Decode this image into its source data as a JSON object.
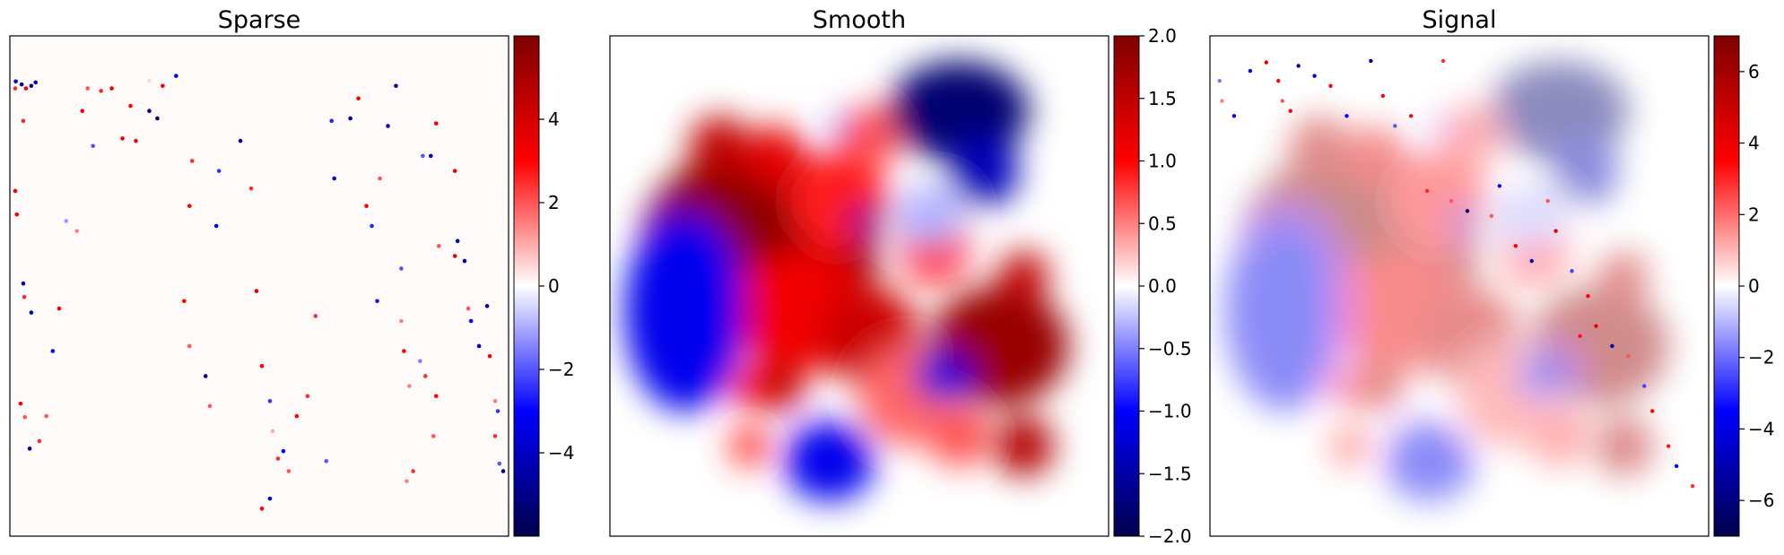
{
  "colormap": {
    "name": "seismic",
    "stops": [
      [
        0.0,
        "#00004c"
      ],
      [
        0.25,
        "#0000ff"
      ],
      [
        0.5,
        "#ffffff"
      ],
      [
        0.75,
        "#ff0000"
      ],
      [
        1.0,
        "#7f0000"
      ]
    ]
  },
  "chart_data": [
    {
      "type": "heatmap",
      "title": "Sparse",
      "value_range": [
        -6,
        6
      ],
      "colorbar_ticks": [
        {
          "value": 4,
          "label": "4"
        },
        {
          "value": 2,
          "label": "2"
        },
        {
          "value": 0,
          "label": "0"
        },
        {
          "value": -2,
          "label": "−2"
        },
        {
          "value": -4,
          "label": "−4"
        }
      ],
      "points": [
        [
          0.081,
          0.091,
          -3.5
        ],
        [
          0.092,
          0.097,
          -4.6
        ],
        [
          0.11,
          0.1,
          -5
        ],
        [
          0.118,
          0.093,
          -4
        ],
        [
          0.08,
          0.105,
          2.5
        ],
        [
          0.1,
          0.105,
          3
        ],
        [
          0.095,
          0.17,
          2.6
        ],
        [
          0.08,
          0.31,
          3.2
        ],
        [
          0.083,
          0.357,
          3
        ],
        [
          0.095,
          0.495,
          -4.6
        ],
        [
          0.097,
          0.522,
          2.5
        ],
        [
          0.11,
          0.553,
          -3.8
        ],
        [
          0.09,
          0.735,
          3
        ],
        [
          0.098,
          0.762,
          2
        ],
        [
          0.107,
          0.825,
          -5
        ],
        [
          0.125,
          0.81,
          2.5
        ],
        [
          0.138,
          0.76,
          2
        ],
        [
          0.15,
          0.63,
          -3
        ],
        [
          0.162,
          0.545,
          3.5
        ],
        [
          0.175,
          0.37,
          -1.2
        ],
        [
          0.195,
          0.39,
          1.5
        ],
        [
          0.205,
          0.15,
          3.2
        ],
        [
          0.215,
          0.105,
          2
        ],
        [
          0.225,
          0.22,
          -2
        ],
        [
          0.24,
          0.11,
          2.6
        ],
        [
          0.26,
          0.105,
          3
        ],
        [
          0.28,
          0.205,
          3.6
        ],
        [
          0.295,
          0.14,
          3
        ],
        [
          0.305,
          0.21,
          3
        ],
        [
          0.33,
          0.15,
          -5
        ],
        [
          0.345,
          0.165,
          -5.4
        ],
        [
          0.33,
          0.09,
          0.5
        ],
        [
          0.355,
          0.1,
          3
        ],
        [
          0.38,
          0.08,
          -3.4
        ],
        [
          0.41,
          0.25,
          2.5
        ],
        [
          0.405,
          0.34,
          3
        ],
        [
          0.395,
          0.53,
          3
        ],
        [
          0.405,
          0.62,
          2
        ],
        [
          0.435,
          0.68,
          -5
        ],
        [
          0.443,
          0.74,
          2
        ],
        [
          0.455,
          0.38,
          -3
        ],
        [
          0.46,
          0.27,
          -2.4
        ],
        [
          0.5,
          0.21,
          -4.5
        ],
        [
          0.52,
          0.305,
          2.5
        ],
        [
          0.53,
          0.51,
          3.5
        ],
        [
          0.54,
          0.66,
          3
        ],
        [
          0.555,
          0.73,
          -2.4
        ],
        [
          0.56,
          0.79,
          1
        ],
        [
          0.57,
          0.845,
          2.5
        ],
        [
          0.555,
          0.925,
          -3.5
        ],
        [
          0.54,
          0.945,
          3
        ],
        [
          0.58,
          0.83,
          -3
        ],
        [
          0.59,
          0.87,
          2
        ],
        [
          0.605,
          0.76,
          3
        ],
        [
          0.625,
          0.72,
          2.5
        ],
        [
          0.64,
          0.56,
          2.5
        ],
        [
          0.66,
          0.85,
          -2
        ],
        [
          0.67,
          0.17,
          -2.6
        ],
        [
          0.675,
          0.285,
          -4
        ],
        [
          0.705,
          0.165,
          -4.3
        ],
        [
          0.72,
          0.125,
          3.2
        ],
        [
          0.735,
          0.34,
          3
        ],
        [
          0.745,
          0.38,
          -2.6
        ],
        [
          0.755,
          0.53,
          -2.8
        ],
        [
          0.76,
          0.285,
          2
        ],
        [
          0.775,
          0.18,
          -4
        ],
        [
          0.79,
          0.1,
          -4.6
        ],
        [
          0.8,
          0.465,
          -2
        ],
        [
          0.8,
          0.57,
          1.5
        ],
        [
          0.805,
          0.63,
          3
        ],
        [
          0.81,
          0.89,
          1.5
        ],
        [
          0.822,
          0.87,
          2.5
        ],
        [
          0.835,
          0.65,
          -1.5
        ],
        [
          0.845,
          0.68,
          2.5
        ],
        [
          0.86,
          0.8,
          2
        ],
        [
          0.865,
          0.72,
          3
        ],
        [
          0.815,
          0.7,
          1.5
        ],
        [
          0.84,
          0.24,
          -2
        ],
        [
          0.855,
          0.24,
          -4.5
        ],
        [
          0.865,
          0.175,
          3.5
        ],
        [
          0.87,
          0.42,
          2
        ],
        [
          0.9,
          0.27,
          3.5
        ],
        [
          0.905,
          0.41,
          -4
        ],
        [
          0.9,
          0.44,
          3.5
        ],
        [
          0.918,
          0.45,
          -4.6
        ],
        [
          0.925,
          0.545,
          2
        ],
        [
          0.93,
          0.57,
          -3
        ],
        [
          0.945,
          0.62,
          -4
        ],
        [
          0.96,
          0.54,
          -4.3
        ],
        [
          0.965,
          0.64,
          3
        ],
        [
          0.975,
          0.73,
          1.5
        ],
        [
          0.98,
          0.75,
          -2.4
        ],
        [
          0.975,
          0.8,
          2.5
        ],
        [
          0.983,
          0.855,
          -2
        ],
        [
          0.99,
          0.87,
          -5
        ],
        [
          1.0,
          0.885,
          -3.5
        ],
        [
          1.012,
          0.09,
          -1.6
        ],
        [
          1.015,
          0.13,
          1.5
        ],
        [
          1.03,
          0.16,
          -3
        ],
        [
          1.05,
          0.07,
          -3.4
        ],
        [
          1.07,
          0.053,
          3.5
        ],
        [
          1.085,
          0.09,
          3
        ],
        [
          1.09,
          0.13,
          2
        ],
        [
          1.1,
          0.15,
          3.5
        ],
        [
          1.11,
          0.06,
          -5
        ],
        [
          1.13,
          0.08,
          -3.5
        ],
        [
          1.15,
          0.1,
          3.2
        ],
        [
          1.17,
          0.16,
          -3
        ],
        [
          1.2,
          0.05,
          -5
        ],
        [
          1.215,
          0.12,
          3
        ],
        [
          1.23,
          0.18,
          -2
        ],
        [
          1.25,
          0.16,
          3
        ],
        [
          1.27,
          0.31,
          2.5
        ],
        [
          1.29,
          0.05,
          2.5
        ],
        [
          1.3,
          0.33,
          2
        ],
        [
          1.32,
          0.35,
          -5.4
        ],
        [
          1.35,
          0.36,
          2
        ],
        [
          1.36,
          0.3,
          -3
        ],
        [
          1.38,
          0.42,
          3.2
        ],
        [
          1.4,
          0.45,
          -4.2
        ],
        [
          1.42,
          0.33,
          2
        ],
        [
          1.43,
          0.39,
          3.6
        ],
        [
          1.45,
          0.47,
          -2.2
        ],
        [
          1.46,
          0.6,
          2.8
        ],
        [
          1.47,
          0.52,
          3
        ],
        [
          1.48,
          0.58,
          3.6
        ],
        [
          1.5,
          0.62,
          -4.5
        ],
        [
          1.52,
          0.64,
          2
        ],
        [
          1.54,
          0.7,
          -2.2
        ],
        [
          1.55,
          0.75,
          3.2
        ],
        [
          1.57,
          0.82,
          2.8
        ],
        [
          1.58,
          0.86,
          -3
        ],
        [
          1.6,
          0.9,
          2.5
        ]
      ]
    },
    {
      "type": "heatmap",
      "title": "Smooth",
      "value_range": [
        -2,
        2
      ],
      "colorbar_ticks": [
        {
          "value": 2.0,
          "label": "2.0"
        },
        {
          "value": 1.5,
          "label": "1.5"
        },
        {
          "value": 1.0,
          "label": "1.0"
        },
        {
          "value": 0.5,
          "label": "0.5"
        },
        {
          "value": 0.0,
          "label": "0.0"
        },
        {
          "value": -0.5,
          "label": "−0.5"
        },
        {
          "value": -1.0,
          "label": "−1.0"
        },
        {
          "value": -1.5,
          "label": "−1.5"
        },
        {
          "value": -2.0,
          "label": "−2.0"
        }
      ]
    },
    {
      "type": "heatmap",
      "title": "Signal",
      "value_range": [
        -7,
        7
      ],
      "colorbar_ticks": [
        {
          "value": 6,
          "label": "6"
        },
        {
          "value": 4,
          "label": "4"
        },
        {
          "value": 2,
          "label": "2"
        },
        {
          "value": 0,
          "label": "0"
        },
        {
          "value": -2,
          "label": "−2"
        },
        {
          "value": -4,
          "label": "−4"
        },
        {
          "value": -6,
          "label": "−6"
        }
      ]
    }
  ]
}
